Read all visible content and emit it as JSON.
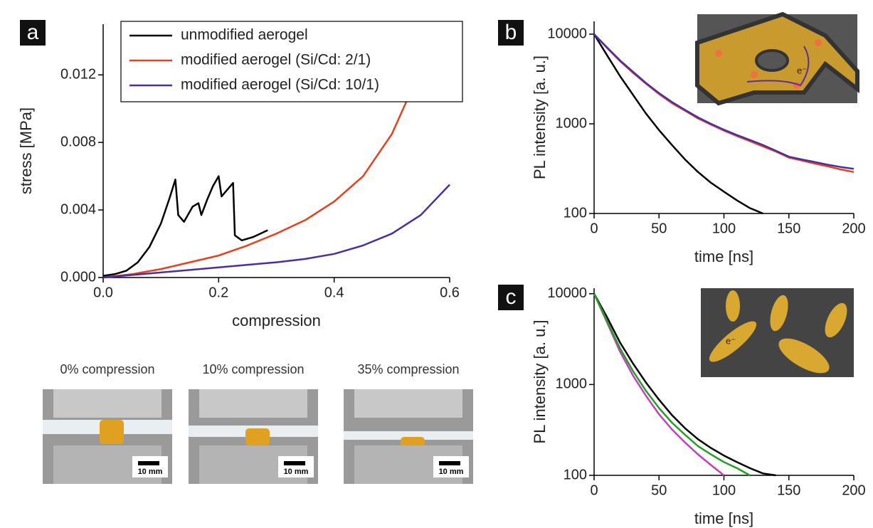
{
  "chart_data": [
    {
      "type": "line",
      "panel_label": "a",
      "x_label": "compression",
      "y_label": "stress [MPa]",
      "xlim": [
        0,
        0.6
      ],
      "xticks": [
        {
          "value": 0,
          "label": "0.0"
        },
        0.2,
        0.4,
        0.6
      ],
      "ylim": [
        0,
        0.015
      ],
      "yticks": [
        {
          "value": 0,
          "label": "0.000"
        },
        0.004,
        0.008,
        0.012
      ],
      "log_y": false,
      "legend": "top",
      "series": [
        {
          "name": "unmodified aerogel",
          "color": "#000000",
          "x": [
            0,
            0.02,
            0.04,
            0.06,
            0.08,
            0.1,
            0.115,
            0.125,
            0.13,
            0.14,
            0.155,
            0.165,
            0.17,
            0.18,
            0.19,
            0.2,
            0.205,
            0.215,
            0.225,
            0.228,
            0.24,
            0.26,
            0.285
          ],
          "values": [
            0.0001,
            0.0002,
            0.0004,
            0.0009,
            0.0018,
            0.0032,
            0.0047,
            0.0058,
            0.0037,
            0.0033,
            0.0042,
            0.0044,
            0.0037,
            0.0046,
            0.0054,
            0.006,
            0.0048,
            0.0052,
            0.0056,
            0.0025,
            0.0022,
            0.0024,
            0.0028
          ]
        },
        {
          "name": "modified aerogel (Si/Cd: 2/1)",
          "color": "#e8401c",
          "x": [
            0,
            0.05,
            0.1,
            0.15,
            0.2,
            0.25,
            0.3,
            0.35,
            0.4,
            0.45,
            0.5,
            0.53
          ],
          "values": [
            0,
            0.0002,
            0.0005,
            0.0009,
            0.0013,
            0.0019,
            0.0026,
            0.0034,
            0.0045,
            0.006,
            0.0085,
            0.0108
          ]
        },
        {
          "name": "modified aerogel (Si/Cd: 10/1)",
          "color": "#4b2fa0",
          "x": [
            0,
            0.1,
            0.2,
            0.3,
            0.35,
            0.4,
            0.45,
            0.5,
            0.55,
            0.6
          ],
          "values": [
            0,
            0.0003,
            0.0006,
            0.0009,
            0.0011,
            0.0014,
            0.0019,
            0.0026,
            0.0037,
            0.0055
          ]
        }
      ]
    },
    {
      "type": "line",
      "panel_label": "b",
      "x_label": "time [ns]",
      "y_label": "PL intensity [a. u.]",
      "inset_text": "e⁻",
      "xlim": [
        0,
        200
      ],
      "xticks": [
        0,
        50,
        100,
        150,
        200
      ],
      "ylim": [
        100,
        13900
      ],
      "yticks": [
        100,
        1000,
        10000
      ],
      "log_y": true,
      "x": [
        0,
        10,
        20,
        30,
        40,
        50,
        60,
        70,
        80,
        90,
        100,
        110,
        120,
        130,
        140,
        150,
        160,
        170,
        180,
        190,
        200
      ],
      "series": [
        {
          "color": "#000000",
          "values": [
            10000,
            5800,
            3400,
            2100,
            1300,
            850,
            580,
            400,
            290,
            220,
            175,
            140,
            115,
            100,
            null,
            null,
            null,
            null,
            null,
            null,
            null
          ]
        },
        {
          "color": "#e8401c",
          "values": [
            10000,
            7000,
            5000,
            3700,
            2800,
            2150,
            1700,
            1400,
            1150,
            980,
            840,
            730,
            640,
            560,
            490,
            420,
            390,
            360,
            335,
            310,
            290
          ]
        },
        {
          "color": "#4b2fa0",
          "values": [
            10000,
            7100,
            5100,
            3800,
            2850,
            2200,
            1750,
            1430,
            1180,
            1000,
            860,
            750,
            660,
            580,
            500,
            430,
            400,
            375,
            350,
            330,
            315
          ]
        }
      ]
    },
    {
      "type": "line",
      "panel_label": "c",
      "x_label": "time [ns]",
      "y_label": "PL intensity [a. u.]",
      "inset_text": "e⁻",
      "xlim": [
        0,
        200
      ],
      "xticks": [
        0,
        50,
        100,
        150,
        200
      ],
      "ylim": [
        100,
        11500
      ],
      "yticks": [
        100,
        1000,
        10000
      ],
      "log_y": true,
      "x": [
        0,
        10,
        20,
        30,
        40,
        50,
        60,
        70,
        80,
        90,
        100,
        110,
        120,
        130,
        140
      ],
      "series": [
        {
          "color": "#000000",
          "values": [
            10000,
            5500,
            2900,
            1700,
            1050,
            680,
            460,
            330,
            250,
            200,
            165,
            140,
            120,
            105,
            100
          ]
        },
        {
          "color": "#c040c0",
          "values": [
            10000,
            4800,
            2300,
            1250,
            750,
            470,
            320,
            230,
            170,
            130,
            100,
            null,
            null,
            null,
            null
          ]
        },
        {
          "color": "#22a022",
          "values": [
            10000,
            5000,
            2500,
            1400,
            850,
            550,
            380,
            280,
            210,
            170,
            140,
            120,
            100,
            null,
            null
          ]
        }
      ]
    }
  ],
  "photos": [
    {
      "caption": "0% compression",
      "scale": "10 mm"
    },
    {
      "caption": "10% compression",
      "scale": "10 mm"
    },
    {
      "caption": "35% compression",
      "scale": "10 mm"
    }
  ]
}
